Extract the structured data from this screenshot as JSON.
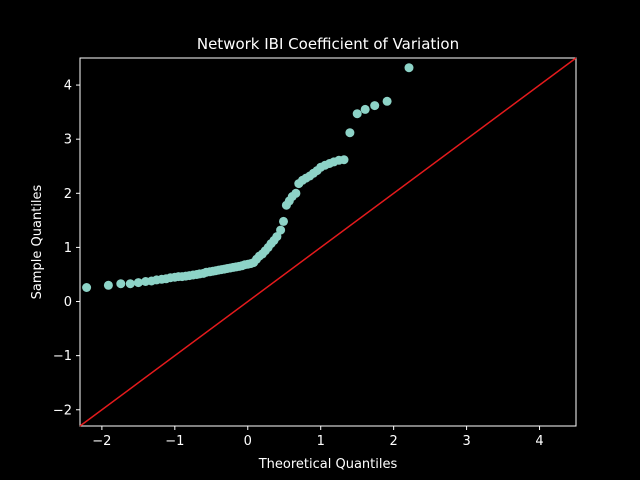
{
  "chart_data": {
    "type": "scatter",
    "title": "Network IBI Coefficient of Variation",
    "xlabel": "Theoretical Quantiles",
    "ylabel": "Sample Quantiles",
    "xlim": [
      -2.3,
      4.5
    ],
    "ylim": [
      -2.3,
      4.5
    ],
    "xticks": [
      -2,
      -1,
      0,
      1,
      2,
      3,
      4
    ],
    "yticks": [
      -2,
      -1,
      0,
      1,
      2,
      3,
      4
    ],
    "xtick_labels": [
      "−2",
      "−1",
      "0",
      "1",
      "2",
      "3",
      "4"
    ],
    "ytick_labels": [
      "−2",
      "−1",
      "0",
      "1",
      "2",
      "3",
      "4"
    ],
    "grid": false,
    "background": "#000000",
    "foreground": "#ffffff",
    "marker_color": "#8dd3c7",
    "line_color": "#e41a1c",
    "reference_line": {
      "x": [
        -2.3,
        4.5
      ],
      "y": [
        -2.3,
        4.5
      ]
    },
    "points": [
      [
        -2.21,
        0.26
      ],
      [
        -1.91,
        0.3
      ],
      [
        -1.74,
        0.33
      ],
      [
        -1.61,
        0.33
      ],
      [
        -1.5,
        0.35
      ],
      [
        -1.4,
        0.37
      ],
      [
        -1.32,
        0.38
      ],
      [
        -1.25,
        0.4
      ],
      [
        -1.18,
        0.41
      ],
      [
        -1.12,
        0.42
      ],
      [
        -1.06,
        0.44
      ],
      [
        -1.0,
        0.45
      ],
      [
        -0.95,
        0.46
      ],
      [
        -0.9,
        0.46
      ],
      [
        -0.85,
        0.47
      ],
      [
        -0.8,
        0.48
      ],
      [
        -0.75,
        0.49
      ],
      [
        -0.7,
        0.5
      ],
      [
        -0.66,
        0.51
      ],
      [
        -0.61,
        0.52
      ],
      [
        -0.57,
        0.54
      ],
      [
        -0.52,
        0.55
      ],
      [
        -0.48,
        0.56
      ],
      [
        -0.44,
        0.57
      ],
      [
        -0.4,
        0.58
      ],
      [
        -0.36,
        0.59
      ],
      [
        -0.32,
        0.6
      ],
      [
        -0.28,
        0.61
      ],
      [
        -0.24,
        0.62
      ],
      [
        -0.2,
        0.63
      ],
      [
        -0.16,
        0.64
      ],
      [
        -0.12,
        0.65
      ],
      [
        -0.08,
        0.66
      ],
      [
        -0.04,
        0.68
      ],
      [
        0.0,
        0.69
      ],
      [
        0.04,
        0.7
      ],
      [
        0.08,
        0.72
      ],
      [
        0.12,
        0.78
      ],
      [
        0.16,
        0.84
      ],
      [
        0.2,
        0.88
      ],
      [
        0.24,
        0.94
      ],
      [
        0.28,
        1.0
      ],
      [
        0.32,
        1.07
      ],
      [
        0.36,
        1.13
      ],
      [
        0.4,
        1.2
      ],
      [
        0.45,
        1.32
      ],
      [
        0.49,
        1.48
      ],
      [
        0.53,
        1.78
      ],
      [
        0.57,
        1.86
      ],
      [
        0.61,
        1.94
      ],
      [
        0.66,
        2.0
      ],
      [
        0.7,
        2.18
      ],
      [
        0.75,
        2.24
      ],
      [
        0.8,
        2.28
      ],
      [
        0.85,
        2.32
      ],
      [
        0.9,
        2.37
      ],
      [
        0.95,
        2.42
      ],
      [
        1.0,
        2.48
      ],
      [
        1.06,
        2.52
      ],
      [
        1.12,
        2.55
      ],
      [
        1.18,
        2.58
      ],
      [
        1.25,
        2.61
      ],
      [
        1.32,
        2.62
      ],
      [
        1.4,
        3.12
      ],
      [
        1.5,
        3.47
      ],
      [
        1.61,
        3.55
      ],
      [
        1.74,
        3.62
      ],
      [
        1.91,
        3.7
      ],
      [
        2.21,
        4.32
      ]
    ]
  }
}
